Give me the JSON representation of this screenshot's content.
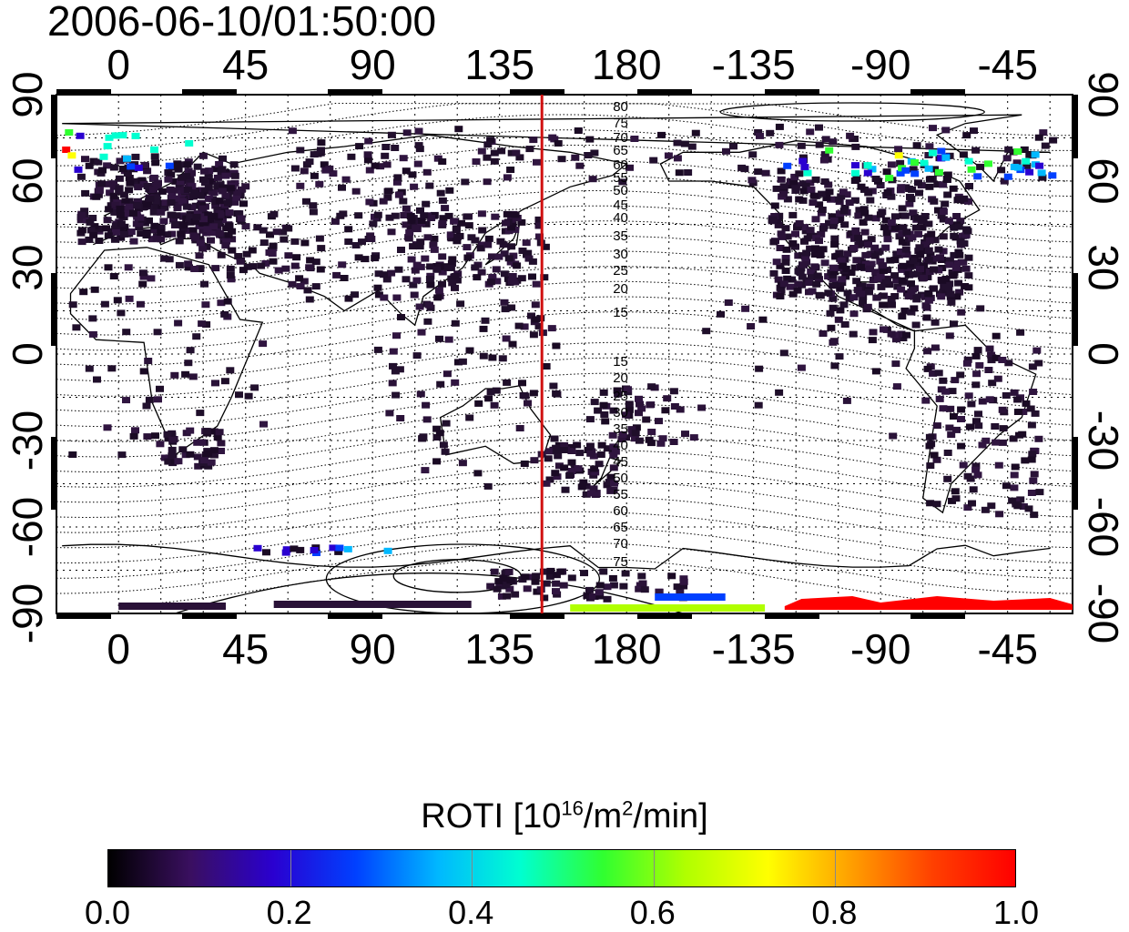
{
  "title": "2006-06-10/01:50:00",
  "map": {
    "lon_ticks": [
      "0",
      "45",
      "90",
      "135",
      "180",
      "-135",
      "-90",
      "-45"
    ],
    "lat_ticks": [
      "90",
      "60",
      "30",
      "0",
      "-30",
      "-60",
      "-90"
    ],
    "lon_range": [
      -22,
      338
    ],
    "lat_range": [
      -90,
      90
    ],
    "terminator_lon": 150,
    "terminator_color": "#d01010",
    "contour_labels": [
      "80",
      "75",
      "70",
      "65",
      "60",
      "55",
      "50",
      "45",
      "40",
      "35",
      "30",
      "25",
      "20",
      "15",
      "15",
      "20",
      "25",
      "30",
      "35",
      "40",
      "45",
      "50",
      "55",
      "60",
      "65",
      "70",
      "75"
    ],
    "grid": true
  },
  "colorbar": {
    "label_main": "ROTI  [10",
    "label_sup1": "16",
    "label_mid": "/m",
    "label_sup2": "2",
    "label_end": "/min]",
    "ticks": [
      "0.0",
      "0.2",
      "0.4",
      "0.6",
      "0.8",
      "1.0"
    ],
    "range": [
      0.0,
      1.0
    ],
    "colors": [
      "#000000",
      "#3a0f60",
      "#2a00d0",
      "#0040ff",
      "#00b8ff",
      "#00ffd0",
      "#30ff30",
      "#b0ff00",
      "#ffff00",
      "#ffa000",
      "#ff4000",
      "#ff0000"
    ]
  }
}
